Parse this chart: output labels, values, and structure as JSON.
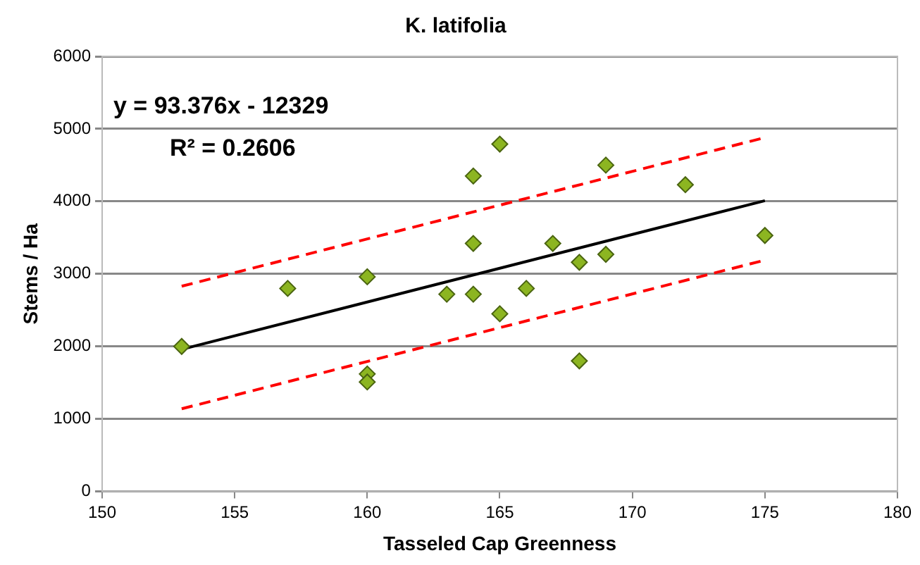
{
  "chart_data": {
    "type": "scatter",
    "title": "K. latifolia",
    "xlabel": "Tasseled Cap Greenness",
    "ylabel": "Stems / Ha",
    "xlim": [
      150,
      180
    ],
    "xticks": [
      150,
      155,
      160,
      165,
      170,
      175,
      180
    ],
    "ylim": [
      0,
      6000
    ],
    "yticks": [
      0,
      1000,
      2000,
      3000,
      4000,
      5000,
      6000
    ],
    "grid": "y",
    "legend": false,
    "marker": "diamond",
    "annotations": [
      "y = 93.376x - 12329",
      "R² = 0.2606"
    ],
    "series": [
      {
        "type": "scatter",
        "color": "#8cb521",
        "x": [
          153,
          157,
          160,
          160,
          160,
          163,
          164,
          164,
          164,
          165,
          165,
          166,
          167,
          168,
          168,
          169,
          169,
          172,
          175
        ],
        "values": [
          2000,
          2800,
          2960,
          1620,
          1510,
          2720,
          4350,
          3420,
          2720,
          4790,
          2450,
          2800,
          3420,
          3160,
          1800,
          4500,
          3270,
          4230,
          3530
        ]
      },
      {
        "type": "line",
        "color": "#000000",
        "marker": "none",
        "line_style": "solid",
        "x": [
          153,
          175
        ],
        "values": [
          1960,
          4010
        ]
      },
      {
        "type": "line",
        "color": "#ff0000",
        "marker": "none",
        "line_style": "dashed",
        "x": [
          153,
          175
        ],
        "values": [
          2830,
          4880
        ]
      },
      {
        "type": "line",
        "color": "#ff0000",
        "marker": "none",
        "line_style": "dashed",
        "x": [
          153,
          175
        ],
        "values": [
          1140,
          3190
        ]
      }
    ]
  }
}
